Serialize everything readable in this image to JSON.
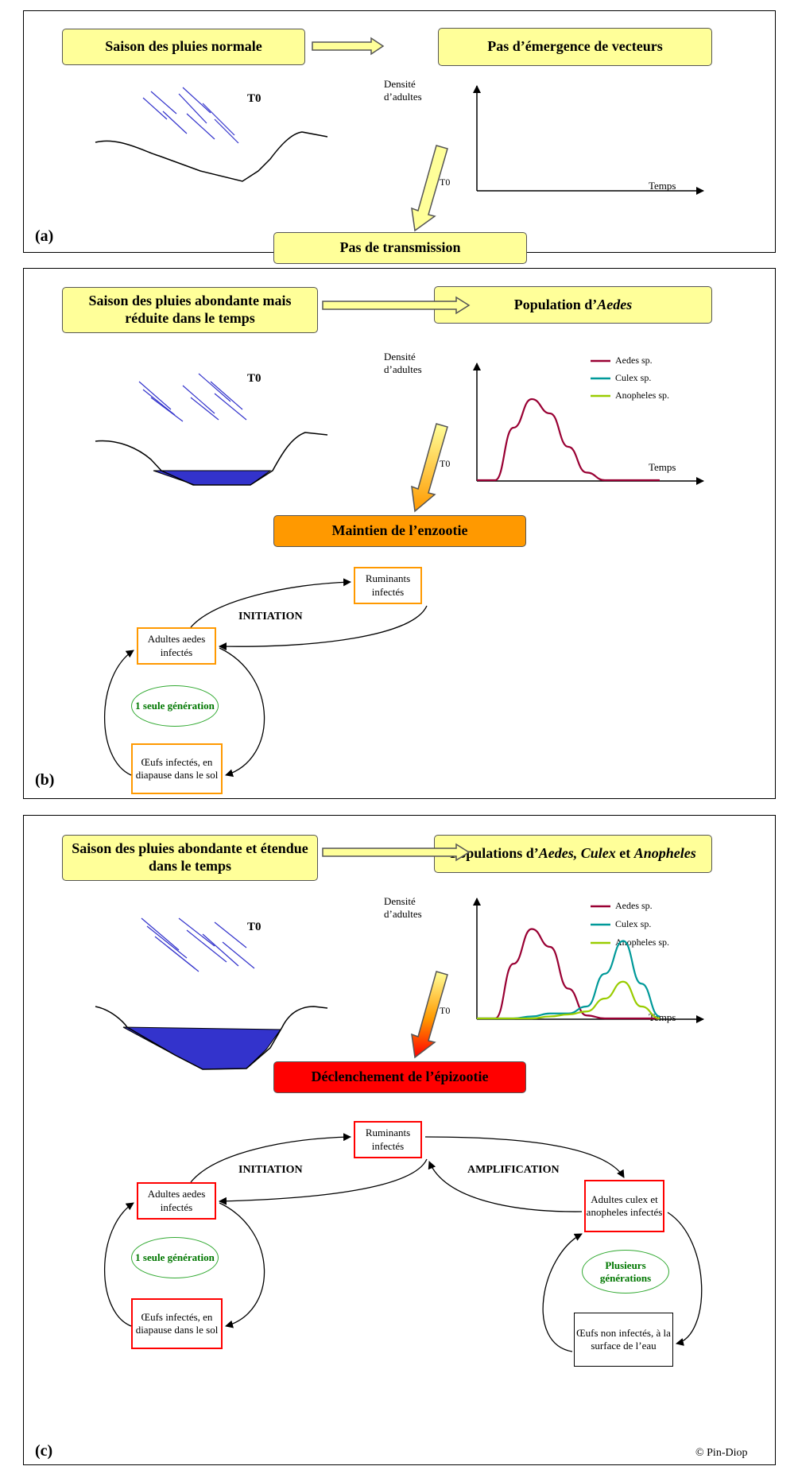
{
  "panels": {
    "a": {
      "letter": "(a)",
      "season": "Saison des pluies normale",
      "result": "Pas d’émergence de vecteurs",
      "outcome": "Pas de transmission",
      "t0": "T0"
    },
    "b": {
      "letter": "(b)",
      "season_line1": "Saison des pluies abondante mais",
      "season_line2": "réduite dans le temps",
      "result_prefix": "Population d’",
      "result_italic": "Aedes",
      "outcome": "Maintien de l’enzootie",
      "t0": "T0",
      "initiation": "INITIATION",
      "ruminants": "Ruminants infectés",
      "adultes_aedes": "Adultes aedes infectés",
      "generation": "1 seule génération",
      "oeufs": "Œufs infectés, en diapause dans le sol"
    },
    "c": {
      "letter": "(c)",
      "season_line1": "Saison des pluies abondante et étendue",
      "season_line2": "dans le temps",
      "result_parts": [
        "Populations d’",
        "Aedes, Culex",
        " et ",
        "Anopheles"
      ],
      "outcome": "Déclenchement de l’épizootie",
      "t0": "T0",
      "initiation": "INITIATION",
      "amplification": "AMPLIFICATION",
      "ruminants": "Ruminants infectés",
      "adultes_aedes": "Adultes aedes infectés",
      "adultes_culex": "Adultes culex et anopheles infectés",
      "generation_one": "1 seule génération",
      "generation_many": "Plusieurs générations",
      "oeufs_infectes": "Œufs infectés, en diapause dans le sol",
      "oeufs_non": "Œufs non infectés, à la surface de l’eau",
      "copyright": "© Pin-Diop"
    }
  },
  "axis": {
    "ylabel_line1": "Densité",
    "ylabel_line2": "d’adultes",
    "xlabel": "Temps",
    "origin": "T0"
  },
  "legend": {
    "aedes": "Aedes sp.",
    "culex": "Culex sp.",
    "anopheles": "Anopheles sp."
  },
  "colors": {
    "aedes": "#990033",
    "culex": "#009999",
    "anopheles": "#99cc00",
    "box_yellow": "#ffff99",
    "box_orange": "#ff9900",
    "box_red": "#ff0000",
    "water": "#3333cc",
    "rain": "#3333cc"
  },
  "chart_data": [
    {
      "type": "line",
      "panel": "a",
      "ylabel": "Densité d’adultes",
      "xlabel": "Temps",
      "series": []
    },
    {
      "type": "line",
      "panel": "b",
      "ylabel": "Densité d’adultes",
      "xlabel": "Temps",
      "x": [
        0,
        1,
        2,
        3,
        4,
        5,
        6,
        7,
        8,
        9,
        10
      ],
      "series": [
        {
          "name": "Aedes sp.",
          "values": [
            0,
            0,
            0.55,
            0.85,
            0.7,
            0.35,
            0.08,
            0,
            0,
            0,
            0
          ]
        },
        {
          "name": "Culex sp.",
          "values": [
            0,
            0,
            0,
            0,
            0,
            0,
            0,
            0,
            0,
            0,
            0
          ]
        },
        {
          "name": "Anopheles sp.",
          "values": [
            0,
            0,
            0,
            0,
            0,
            0,
            0,
            0,
            0,
            0,
            0
          ]
        }
      ]
    },
    {
      "type": "line",
      "panel": "c",
      "ylabel": "Densité d’adultes",
      "xlabel": "Temps",
      "x": [
        0,
        1,
        2,
        3,
        4,
        5,
        6,
        7,
        8,
        9,
        10
      ],
      "series": [
        {
          "name": "Aedes sp.",
          "values": [
            0,
            0,
            0.55,
            0.9,
            0.72,
            0.3,
            0.03,
            0,
            0,
            0,
            0
          ]
        },
        {
          "name": "Culex sp.",
          "values": [
            0,
            0,
            0,
            0.02,
            0.05,
            0.05,
            0.12,
            0.45,
            0.78,
            0.35,
            0.02
          ]
        },
        {
          "name": "Anopheles sp.",
          "values": [
            0,
            0,
            0,
            0,
            0.02,
            0.04,
            0.07,
            0.2,
            0.37,
            0.12,
            0
          ]
        }
      ]
    }
  ]
}
